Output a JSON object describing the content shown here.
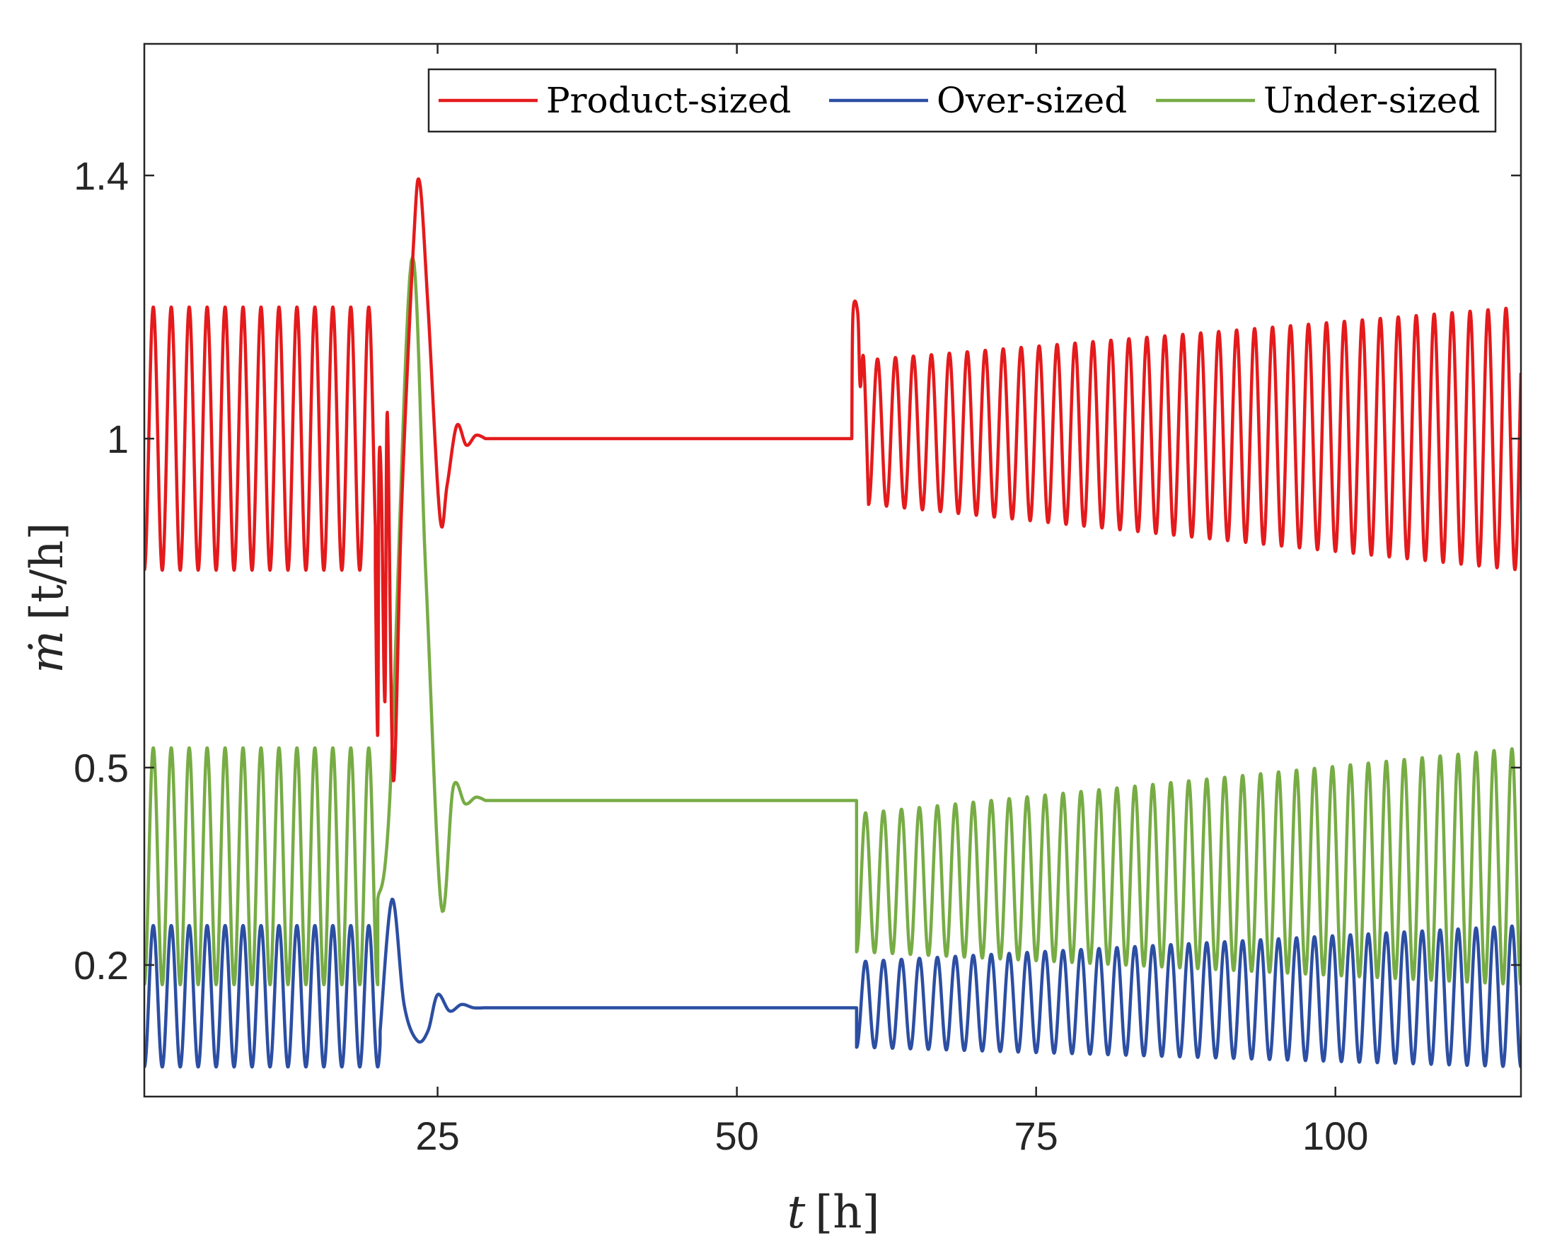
{
  "chart_data": {
    "type": "line",
    "title": "",
    "xlabel": "t [h]",
    "ylabel": "ṁ [t/h]",
    "xlabel_var": "t",
    "xlabel_unit": "[h]",
    "ylabel_var": "ṁ",
    "ylabel_unit": "[t/h]",
    "xlim": [
      0.5,
      115.5
    ],
    "ylim": [
      0.0,
      1.6
    ],
    "xticks": [
      25,
      50,
      75,
      100
    ],
    "xtick_labels": [
      "25",
      "50",
      "75",
      "100"
    ],
    "yticks": [
      0.2,
      0.5,
      1.0,
      1.4
    ],
    "ytick_labels": [
      "0.2",
      "0.5",
      "1",
      "1.4"
    ],
    "grid": false,
    "legend_position": "top-right",
    "series": [
      {
        "name": "Product-sized",
        "color": "#e41a1c",
        "segments": [
          {
            "phase": "oscillation",
            "t_start": 0.5,
            "t_end": 19.8,
            "period": 1.5,
            "min": 0.8,
            "max": 1.2
          },
          {
            "phase": "transient",
            "points": [
              [
                19.8,
                0.8
              ],
              [
                20.0,
                0.55
              ],
              [
                20.1,
                0.95
              ],
              [
                20.3,
                0.93
              ],
              [
                20.6,
                0.6
              ],
              [
                20.8,
                1.04
              ],
              [
                21.3,
                0.48
              ],
              [
                22.0,
                0.9
              ],
              [
                23.0,
                1.3
              ],
              [
                23.5,
                1.39
              ],
              [
                24.2,
                1.2
              ],
              [
                25.2,
                0.88
              ],
              [
                25.8,
                0.93
              ],
              [
                26.6,
                1.02
              ],
              [
                27.4,
                0.99
              ],
              [
                28.2,
                1.005
              ],
              [
                29.0,
                1.0
              ]
            ]
          },
          {
            "phase": "steady",
            "t_start": 29.0,
            "t_end": 59.6,
            "value": 1.0
          },
          {
            "phase": "transient",
            "points": [
              [
                59.6,
                1.0
              ],
              [
                59.7,
                1.19
              ],
              [
                60.1,
                1.19
              ],
              [
                60.3,
                1.08
              ],
              [
                60.6,
                1.12
              ],
              [
                61.0,
                0.9
              ]
            ]
          },
          {
            "phase": "oscillation",
            "t_start": 61.0,
            "t_end": 115.5,
            "period": 1.5,
            "min_start": 0.9,
            "max_start": 1.12,
            "min_end": 0.8,
            "max_end": 1.2
          }
        ]
      },
      {
        "name": "Over-sized",
        "color": "#2c4ea3",
        "segments": [
          {
            "phase": "oscillation",
            "t_start": 0.5,
            "t_end": 20.2,
            "period": 1.5,
            "min": 0.045,
            "max": 0.26
          },
          {
            "phase": "transient",
            "points": [
              [
                20.2,
                0.1
              ],
              [
                21.2,
                0.3
              ],
              [
                22.2,
                0.14
              ],
              [
                23.3,
                0.085
              ],
              [
                24.2,
                0.1
              ],
              [
                25.0,
                0.155
              ],
              [
                26.0,
                0.13
              ],
              [
                27.0,
                0.14
              ],
              [
                28.0,
                0.135
              ],
              [
                29.0,
                0.135
              ]
            ]
          },
          {
            "phase": "steady",
            "t_start": 29.0,
            "t_end": 60.0,
            "value": 0.135
          },
          {
            "phase": "oscillation",
            "t_start": 60.0,
            "t_end": 115.5,
            "period": 1.5,
            "min_start": 0.075,
            "max_start": 0.205,
            "min_end": 0.045,
            "max_end": 0.26
          }
        ]
      },
      {
        "name": "Under-sized",
        "color": "#77ac45",
        "segments": [
          {
            "phase": "oscillation",
            "t_start": 0.5,
            "t_end": 20.0,
            "period": 1.5,
            "min": 0.17,
            "max": 0.53
          },
          {
            "phase": "transient",
            "points": [
              [
                20.0,
                0.3
              ],
              [
                21.0,
                0.45
              ],
              [
                22.8,
                1.27
              ],
              [
                24.0,
                0.8
              ],
              [
                25.3,
                0.29
              ],
              [
                26.3,
                0.47
              ],
              [
                27.3,
                0.445
              ],
              [
                28.2,
                0.455
              ],
              [
                29.0,
                0.45
              ]
            ]
          },
          {
            "phase": "steady",
            "t_start": 29.0,
            "t_end": 60.0,
            "value": 0.45
          },
          {
            "phase": "oscillation",
            "t_start": 60.0,
            "t_end": 115.5,
            "period": 1.5,
            "min_start": 0.22,
            "max_start": 0.43,
            "min_end": 0.17,
            "max_end": 0.53
          }
        ]
      }
    ]
  }
}
